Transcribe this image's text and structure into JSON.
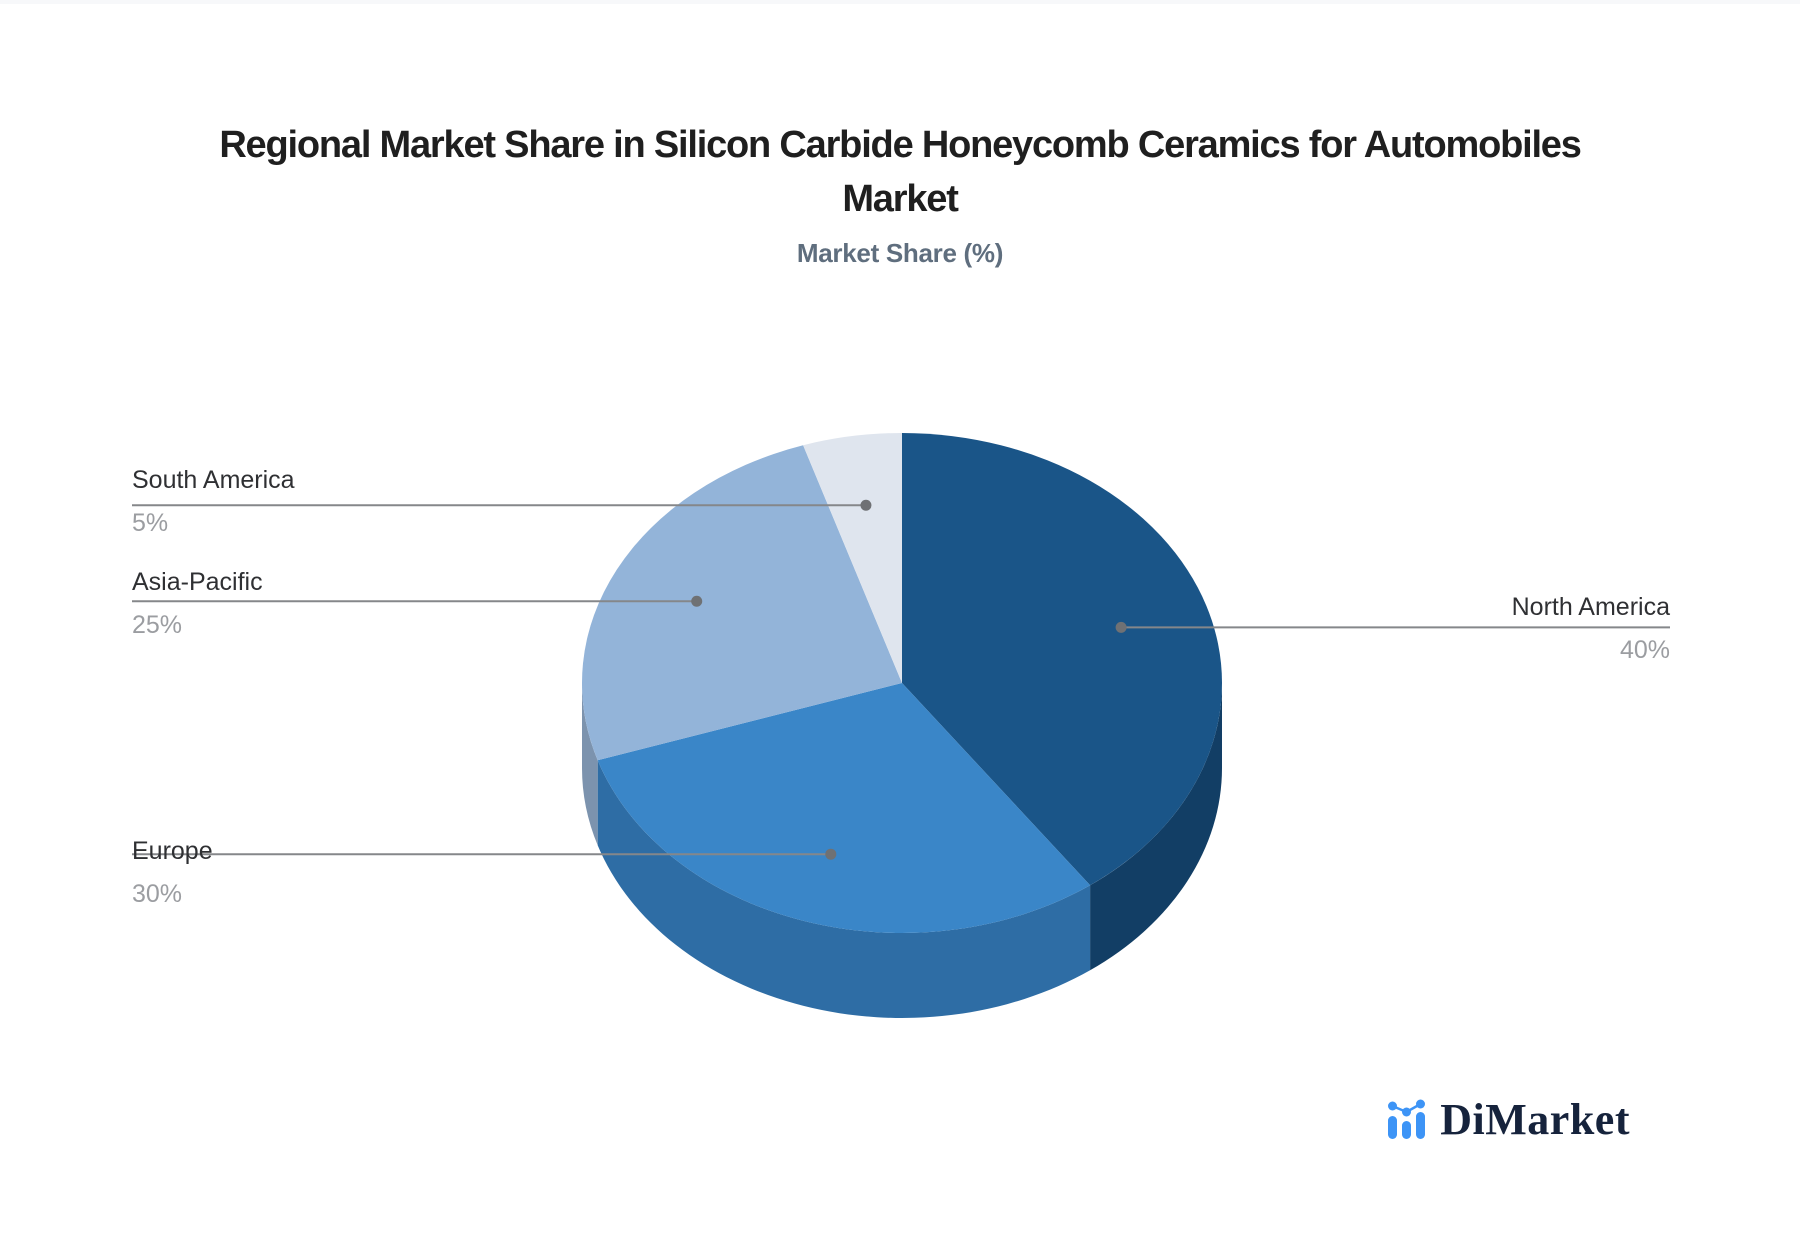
{
  "header": {
    "title_lines": [
      "Regional Market Share in Silicon Carbide Honeycomb Ceramics for Automobiles",
      "Market"
    ],
    "subtitle": "Market Share (%)"
  },
  "chart_data": {
    "type": "pie",
    "title": "Regional Market Share in Silicon Carbide Honeycomb Ceramics for Automobiles Market",
    "subtitle": "Market Share (%)",
    "unit": "%",
    "labels": [
      "North America",
      "Europe",
      "Asia-Pacific",
      "South America"
    ],
    "values": [
      40,
      30,
      25,
      5
    ],
    "slice_colors": [
      "#1A5588",
      "#3A86C8",
      "#93B4D9",
      "#DFE5EE"
    ],
    "slice_side_colors": [
      "#123E65",
      "#2E6DA5",
      "#7C93AE",
      "#C9D3E1"
    ],
    "start_angle": "12-oclock",
    "direction": "clockwise",
    "style": "3d-pie",
    "legend_position": "callout-labels"
  },
  "callouts": [
    {
      "label": "North America",
      "value_text": "40%",
      "side": "right"
    },
    {
      "label": "Europe",
      "value_text": "30%",
      "side": "left"
    },
    {
      "label": "Asia-Pacific",
      "value_text": "25%",
      "side": "left"
    },
    {
      "label": "South America",
      "value_text": "5%",
      "side": "left"
    }
  ],
  "branding": {
    "logo_text": "DiMarket",
    "logo_icon": "bar-chart-icon",
    "icon_color": "#3D94F6",
    "text_color": "#16233C"
  },
  "palette": {
    "title": "#1F1F1F",
    "subtitle": "#5F6E7E",
    "callout_label": "#2F3033",
    "callout_value": "#9B9DA1",
    "leader_line": "#85878A",
    "leader_dot": "#6F7174",
    "background": "#FFFFFF"
  }
}
